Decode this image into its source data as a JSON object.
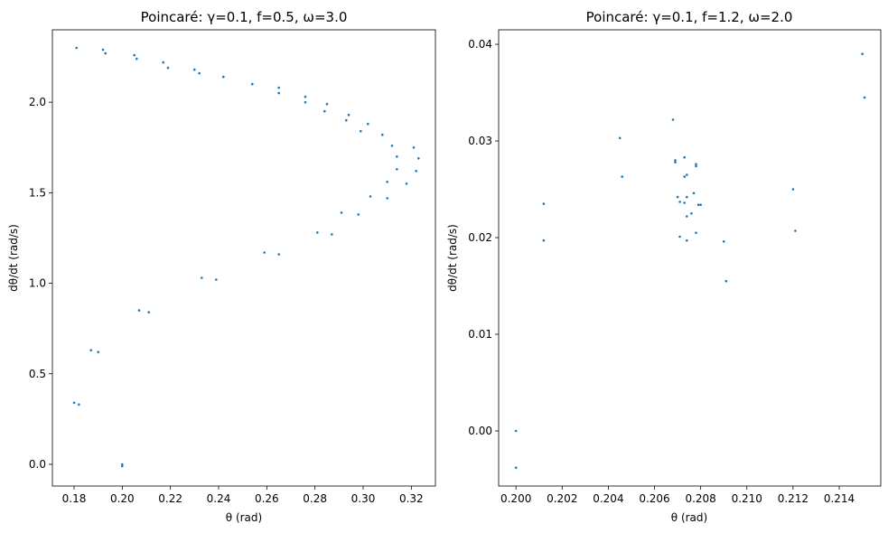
{
  "chart_data": [
    {
      "type": "scatter",
      "title": "Poincaré: γ=0.1, f=0.5, ω=3.0",
      "xlabel": "θ (rad)",
      "ylabel": "dθ/dt (rad/s)",
      "xlim": [
        0.171,
        0.33
      ],
      "ylim": [
        -0.12,
        2.4
      ],
      "xticks": [
        0.18,
        0.2,
        0.22,
        0.24,
        0.26,
        0.28,
        0.3,
        0.32
      ],
      "xtick_labels": [
        "0.18",
        "0.20",
        "0.22",
        "0.24",
        "0.26",
        "0.28",
        "0.30",
        "0.32"
      ],
      "yticks": [
        0.0,
        0.5,
        1.0,
        1.5,
        2.0
      ],
      "ytick_labels": [
        "0.0",
        "0.5",
        "1.0",
        "1.5",
        "2.0"
      ],
      "grid": false,
      "color": "#1f77b4",
      "points": [
        [
          0.181,
          2.3
        ],
        [
          0.192,
          2.29
        ],
        [
          0.193,
          2.27
        ],
        [
          0.205,
          2.26
        ],
        [
          0.206,
          2.24
        ],
        [
          0.217,
          2.22
        ],
        [
          0.219,
          2.19
        ],
        [
          0.23,
          2.18
        ],
        [
          0.232,
          2.16
        ],
        [
          0.242,
          2.14
        ],
        [
          0.254,
          2.1
        ],
        [
          0.265,
          2.08
        ],
        [
          0.265,
          2.05
        ],
        [
          0.276,
          2.03
        ],
        [
          0.276,
          2.0
        ],
        [
          0.285,
          1.99
        ],
        [
          0.284,
          1.95
        ],
        [
          0.294,
          1.93
        ],
        [
          0.293,
          1.9
        ],
        [
          0.302,
          1.88
        ],
        [
          0.299,
          1.84
        ],
        [
          0.308,
          1.82
        ],
        [
          0.312,
          1.76
        ],
        [
          0.321,
          1.75
        ],
        [
          0.314,
          1.7
        ],
        [
          0.323,
          1.69
        ],
        [
          0.314,
          1.63
        ],
        [
          0.322,
          1.62
        ],
        [
          0.31,
          1.56
        ],
        [
          0.318,
          1.55
        ],
        [
          0.303,
          1.48
        ],
        [
          0.31,
          1.47
        ],
        [
          0.291,
          1.39
        ],
        [
          0.298,
          1.38
        ],
        [
          0.281,
          1.28
        ],
        [
          0.287,
          1.27
        ],
        [
          0.259,
          1.17
        ],
        [
          0.265,
          1.16
        ],
        [
          0.233,
          1.03
        ],
        [
          0.239,
          1.02
        ],
        [
          0.207,
          0.85
        ],
        [
          0.211,
          0.84
        ],
        [
          0.187,
          0.63
        ],
        [
          0.19,
          0.62
        ],
        [
          0.18,
          0.34
        ],
        [
          0.182,
          0.33
        ],
        [
          0.2,
          0.0
        ],
        [
          0.2,
          -0.01
        ]
      ]
    },
    {
      "type": "scatter",
      "title": "Poincaré: γ=0.1, f=1.2, ω=2.0",
      "xlabel": "θ (rad)",
      "ylabel": "dθ/dt (rad/s)",
      "xlim": [
        0.19925,
        0.2158
      ],
      "ylim": [
        -0.0057,
        0.0415
      ],
      "xticks": [
        0.2,
        0.202,
        0.204,
        0.206,
        0.208,
        0.21,
        0.212,
        0.214
      ],
      "xtick_labels": [
        "0.200",
        "0.202",
        "0.204",
        "0.206",
        "0.208",
        "0.210",
        "0.212",
        "0.214"
      ],
      "yticks": [
        0.0,
        0.01,
        0.02,
        0.03,
        0.04
      ],
      "ytick_labels": [
        "0.00",
        "0.01",
        "0.02",
        "0.03",
        "0.04"
      ],
      "grid": false,
      "color": "#1f77b4",
      "points": [
        [
          0.215,
          0.039
        ],
        [
          0.2151,
          0.0345
        ],
        [
          0.2068,
          0.0322
        ],
        [
          0.2045,
          0.0303
        ],
        [
          0.2073,
          0.0283
        ],
        [
          0.2069,
          0.028
        ],
        [
          0.2069,
          0.0278
        ],
        [
          0.2078,
          0.0276
        ],
        [
          0.2078,
          0.0274
        ],
        [
          0.2074,
          0.0265
        ],
        [
          0.2073,
          0.0263
        ],
        [
          0.2046,
          0.0263
        ],
        [
          0.212,
          0.025
        ],
        [
          0.2077,
          0.0246
        ],
        [
          0.2074,
          0.0242
        ],
        [
          0.207,
          0.0242
        ],
        [
          0.2071,
          0.0237
        ],
        [
          0.2073,
          0.0236
        ],
        [
          0.2012,
          0.0235
        ],
        [
          0.2079,
          0.0234
        ],
        [
          0.208,
          0.0234
        ],
        [
          0.2076,
          0.0225
        ],
        [
          0.2074,
          0.0222
        ],
        [
          0.2121,
          0.0207
        ],
        [
          0.2078,
          0.0205
        ],
        [
          0.2071,
          0.0201
        ],
        [
          0.2012,
          0.0197
        ],
        [
          0.2074,
          0.0197
        ],
        [
          0.209,
          0.0196
        ],
        [
          0.2091,
          0.0155
        ],
        [
          0.2,
          0.0
        ],
        [
          0.2,
          -0.0038
        ]
      ]
    }
  ]
}
